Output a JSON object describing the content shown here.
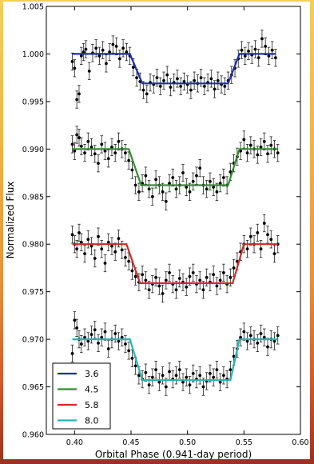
{
  "chart_data": {
    "type": "scatter",
    "title": "",
    "xlabel": "Orbital Phase (0.941-day period)",
    "ylabel": "Normalized Flux",
    "xlim": [
      0.375,
      0.6
    ],
    "ylim": [
      0.96,
      1.005
    ],
    "grid": false,
    "legend_position": "bottom-left",
    "x_ticks": [
      0.4,
      0.45,
      0.5,
      0.55,
      0.6
    ],
    "x_tick_labels": [
      "0.40",
      "0.45",
      "0.50",
      "0.55",
      "0.60"
    ],
    "y_ticks": [
      0.96,
      0.965,
      0.97,
      0.975,
      0.98,
      0.985,
      0.99,
      0.995,
      1.0,
      1.005
    ],
    "y_tick_labels": [
      "0.960",
      "0.965",
      "0.970",
      "0.975",
      "0.980",
      "0.985",
      "0.990",
      "0.995",
      "1.000",
      "1.005"
    ],
    "series": [
      {
        "name": "3.6",
        "color": "#1f2ea8",
        "model": {
          "baseline": 1.0,
          "depth": 0.0031,
          "ingress_start": 0.449,
          "ingress_end": 0.46,
          "egress_start": 0.536,
          "egress_end": 0.546
        },
        "points": [
          [
            0.398,
            0.9992
          ],
          [
            0.4,
            0.9985
          ],
          [
            0.402,
            0.9952
          ],
          [
            0.404,
            0.9958
          ],
          [
            0.406,
            0.9998
          ],
          [
            0.408,
            1.0002
          ],
          [
            0.41,
            1.0005
          ],
          [
            0.413,
            0.9982
          ],
          [
            0.416,
            1.0001
          ],
          [
            0.419,
            1.0006
          ],
          [
            0.422,
            0.9998
          ],
          [
            0.425,
            1.0004
          ],
          [
            0.428,
            0.999
          ],
          [
            0.431,
            1.0002
          ],
          [
            0.434,
            1.001
          ],
          [
            0.437,
            1.0008
          ],
          [
            0.44,
            0.9995
          ],
          [
            0.443,
            1.0006
          ],
          [
            0.446,
            1.0002
          ],
          [
            0.449,
            0.9998
          ],
          [
            0.452,
            0.9986
          ],
          [
            0.455,
            0.9975
          ],
          [
            0.458,
            0.9971
          ],
          [
            0.461,
            0.9962
          ],
          [
            0.464,
            0.9958
          ],
          [
            0.467,
            0.997
          ],
          [
            0.47,
            0.9968
          ],
          [
            0.473,
            0.9975
          ],
          [
            0.476,
            0.9966
          ],
          [
            0.479,
            0.9972
          ],
          [
            0.482,
            0.9978
          ],
          [
            0.485,
            0.9965
          ],
          [
            0.488,
            0.997
          ],
          [
            0.491,
            0.9974
          ],
          [
            0.494,
            0.9966
          ],
          [
            0.497,
            0.9971
          ],
          [
            0.5,
            0.9968
          ],
          [
            0.503,
            0.9962
          ],
          [
            0.506,
            0.9972
          ],
          [
            0.509,
            0.9969
          ],
          [
            0.512,
            0.9975
          ],
          [
            0.515,
            0.9966
          ],
          [
            0.518,
            0.997
          ],
          [
            0.521,
            0.9974
          ],
          [
            0.524,
            0.9963
          ],
          [
            0.527,
            0.9972
          ],
          [
            0.53,
            0.9968
          ],
          [
            0.533,
            0.9966
          ],
          [
            0.536,
            0.9972
          ],
          [
            0.539,
            0.9978
          ],
          [
            0.542,
            0.9985
          ],
          [
            0.545,
            0.9995
          ],
          [
            0.548,
            1.0004
          ],
          [
            0.551,
            0.9998
          ],
          [
            0.554,
            1.0003
          ],
          [
            0.557,
            0.9999
          ],
          [
            0.56,
            1.0005
          ],
          [
            0.563,
            0.9996
          ],
          [
            0.566,
            1.0016
          ],
          [
            0.569,
            1.0008
          ],
          [
            0.572,
            0.9998
          ],
          [
            0.575,
            1.0004
          ],
          [
            0.578,
            0.9996
          ]
        ]
      },
      {
        "name": "4.5",
        "color": "#2f8f2b",
        "model": {
          "baseline": 0.99,
          "depth": 0.0038,
          "ingress_start": 0.448,
          "ingress_end": 0.459,
          "egress_start": 0.536,
          "egress_end": 0.546
        },
        "points": [
          [
            0.398,
            0.9905
          ],
          [
            0.4,
            0.9898
          ],
          [
            0.402,
            0.9915
          ],
          [
            0.404,
            0.9912
          ],
          [
            0.406,
            0.9903
          ],
          [
            0.409,
            0.9896
          ],
          [
            0.412,
            0.9908
          ],
          [
            0.415,
            0.9902
          ],
          [
            0.418,
            0.9895
          ],
          [
            0.421,
            0.9885
          ],
          [
            0.424,
            0.9905
          ],
          [
            0.427,
            0.9898
          ],
          [
            0.43,
            0.989
          ],
          [
            0.433,
            0.9902
          ],
          [
            0.436,
            0.9896
          ],
          [
            0.439,
            0.9908
          ],
          [
            0.442,
            0.99
          ],
          [
            0.445,
            0.9896
          ],
          [
            0.448,
            0.9888
          ],
          [
            0.451,
            0.9878
          ],
          [
            0.454,
            0.9862
          ],
          [
            0.457,
            0.9855
          ],
          [
            0.46,
            0.9864
          ],
          [
            0.463,
            0.9872
          ],
          [
            0.466,
            0.9858
          ],
          [
            0.469,
            0.985
          ],
          [
            0.472,
            0.9868
          ],
          [
            0.475,
            0.9862
          ],
          [
            0.478,
            0.9855
          ],
          [
            0.481,
            0.9845
          ],
          [
            0.484,
            0.9864
          ],
          [
            0.487,
            0.987
          ],
          [
            0.49,
            0.9858
          ],
          [
            0.493,
            0.9862
          ],
          [
            0.496,
            0.9875
          ],
          [
            0.499,
            0.986
          ],
          [
            0.502,
            0.9855
          ],
          [
            0.505,
            0.9866
          ],
          [
            0.508,
            0.9872
          ],
          [
            0.511,
            0.988
          ],
          [
            0.514,
            0.9862
          ],
          [
            0.517,
            0.9858
          ],
          [
            0.52,
            0.9866
          ],
          [
            0.523,
            0.986
          ],
          [
            0.526,
            0.9855
          ],
          [
            0.529,
            0.9864
          ],
          [
            0.532,
            0.987
          ],
          [
            0.535,
            0.9862
          ],
          [
            0.538,
            0.9876
          ],
          [
            0.541,
            0.9885
          ],
          [
            0.544,
            0.9892
          ],
          [
            0.547,
            0.9898
          ],
          [
            0.55,
            0.991
          ],
          [
            0.553,
            0.9896
          ],
          [
            0.556,
            0.9904
          ],
          [
            0.559,
            0.99
          ],
          [
            0.562,
            0.9894
          ],
          [
            0.565,
            0.9902
          ],
          [
            0.568,
            0.9908
          ],
          [
            0.571,
            0.9895
          ],
          [
            0.574,
            0.9904
          ],
          [
            0.577,
            0.99
          ],
          [
            0.58,
            0.9896
          ]
        ]
      },
      {
        "name": "5.8",
        "color": "#d12a2a",
        "model": {
          "baseline": 0.98,
          "depth": 0.0041,
          "ingress_start": 0.446,
          "ingress_end": 0.458,
          "egress_start": 0.54,
          "egress_end": 0.55
        },
        "points": [
          [
            0.398,
            0.981
          ],
          [
            0.4,
            0.98
          ],
          [
            0.402,
            0.9795
          ],
          [
            0.404,
            0.9812
          ],
          [
            0.406,
            0.9802
          ],
          [
            0.409,
            0.979
          ],
          [
            0.412,
            0.9805
          ],
          [
            0.415,
            0.9798
          ],
          [
            0.418,
            0.9785
          ],
          [
            0.421,
            0.9808
          ],
          [
            0.424,
            0.9795
          ],
          [
            0.427,
            0.978
          ],
          [
            0.43,
            0.9802
          ],
          [
            0.433,
            0.9798
          ],
          [
            0.436,
            0.9792
          ],
          [
            0.439,
            0.9806
          ],
          [
            0.442,
            0.9794
          ],
          [
            0.445,
            0.9786
          ],
          [
            0.448,
            0.9782
          ],
          [
            0.451,
            0.9772
          ],
          [
            0.454,
            0.9766
          ],
          [
            0.457,
            0.976
          ],
          [
            0.46,
            0.9768
          ],
          [
            0.463,
            0.9762
          ],
          [
            0.466,
            0.9752
          ],
          [
            0.469,
            0.9758
          ],
          [
            0.472,
            0.9765
          ],
          [
            0.475,
            0.9756
          ],
          [
            0.478,
            0.9748
          ],
          [
            0.481,
            0.9762
          ],
          [
            0.484,
            0.977
          ],
          [
            0.487,
            0.9758
          ],
          [
            0.49,
            0.9752
          ],
          [
            0.493,
            0.9764
          ],
          [
            0.496,
            0.976
          ],
          [
            0.499,
            0.9755
          ],
          [
            0.502,
            0.9766
          ],
          [
            0.505,
            0.977
          ],
          [
            0.508,
            0.9758
          ],
          [
            0.511,
            0.9762
          ],
          [
            0.514,
            0.9752
          ],
          [
            0.517,
            0.9765
          ],
          [
            0.52,
            0.976
          ],
          [
            0.523,
            0.9768
          ],
          [
            0.526,
            0.9756
          ],
          [
            0.529,
            0.9762
          ],
          [
            0.532,
            0.977
          ],
          [
            0.535,
            0.9758
          ],
          [
            0.538,
            0.9765
          ],
          [
            0.541,
            0.9775
          ],
          [
            0.544,
            0.9782
          ],
          [
            0.547,
            0.9792
          ],
          [
            0.55,
            0.98
          ],
          [
            0.553,
            0.9795
          ],
          [
            0.556,
            0.9808
          ],
          [
            0.559,
            0.98
          ],
          [
            0.562,
            0.9812
          ],
          [
            0.565,
            0.9795
          ],
          [
            0.568,
            0.9822
          ],
          [
            0.571,
            0.981
          ],
          [
            0.574,
            0.9805
          ],
          [
            0.577,
            0.979
          ],
          [
            0.58,
            0.98
          ]
        ]
      },
      {
        "name": "8.0",
        "color": "#26b4b0",
        "model": {
          "baseline": 0.97,
          "depth": 0.0043,
          "ingress_start": 0.449,
          "ingress_end": 0.46,
          "egress_start": 0.538,
          "egress_end": 0.546
        },
        "points": [
          [
            0.398,
            0.9685
          ],
          [
            0.4,
            0.972
          ],
          [
            0.402,
            0.9712
          ],
          [
            0.404,
            0.97
          ],
          [
            0.406,
            0.9695
          ],
          [
            0.409,
            0.9702
          ],
          [
            0.412,
            0.9698
          ],
          [
            0.415,
            0.9705
          ],
          [
            0.418,
            0.971
          ],
          [
            0.421,
            0.9696
          ],
          [
            0.424,
            0.9702
          ],
          [
            0.427,
            0.9708
          ],
          [
            0.43,
            0.969
          ],
          [
            0.433,
            0.97
          ],
          [
            0.436,
            0.9706
          ],
          [
            0.439,
            0.9698
          ],
          [
            0.442,
            0.9702
          ],
          [
            0.445,
            0.9695
          ],
          [
            0.448,
            0.9688
          ],
          [
            0.451,
            0.968
          ],
          [
            0.454,
            0.9672
          ],
          [
            0.457,
            0.9662
          ],
          [
            0.46,
            0.9658
          ],
          [
            0.463,
            0.9665
          ],
          [
            0.466,
            0.9652
          ],
          [
            0.469,
            0.966
          ],
          [
            0.472,
            0.9668
          ],
          [
            0.475,
            0.9655
          ],
          [
            0.478,
            0.9662
          ],
          [
            0.481,
            0.965
          ],
          [
            0.484,
            0.9666
          ],
          [
            0.487,
            0.9658
          ],
          [
            0.49,
            0.9662
          ],
          [
            0.493,
            0.9668
          ],
          [
            0.496,
            0.9655
          ],
          [
            0.499,
            0.966
          ],
          [
            0.502,
            0.9652
          ],
          [
            0.505,
            0.9664
          ],
          [
            0.508,
            0.9658
          ],
          [
            0.511,
            0.9662
          ],
          [
            0.514,
            0.965
          ],
          [
            0.517,
            0.9656
          ],
          [
            0.52,
            0.9664
          ],
          [
            0.523,
            0.966
          ],
          [
            0.526,
            0.9668
          ],
          [
            0.529,
            0.9655
          ],
          [
            0.532,
            0.9662
          ],
          [
            0.535,
            0.9658
          ],
          [
            0.538,
            0.9668
          ],
          [
            0.541,
            0.9682
          ],
          [
            0.544,
            0.969
          ],
          [
            0.547,
            0.9702
          ],
          [
            0.55,
            0.9708
          ],
          [
            0.553,
            0.9698
          ],
          [
            0.556,
            0.9704
          ],
          [
            0.559,
            0.97
          ],
          [
            0.562,
            0.9696
          ],
          [
            0.565,
            0.9706
          ],
          [
            0.568,
            0.9702
          ],
          [
            0.571,
            0.9692
          ],
          [
            0.574,
            0.97
          ],
          [
            0.577,
            0.9698
          ],
          [
            0.58,
            0.9704
          ]
        ]
      }
    ]
  }
}
